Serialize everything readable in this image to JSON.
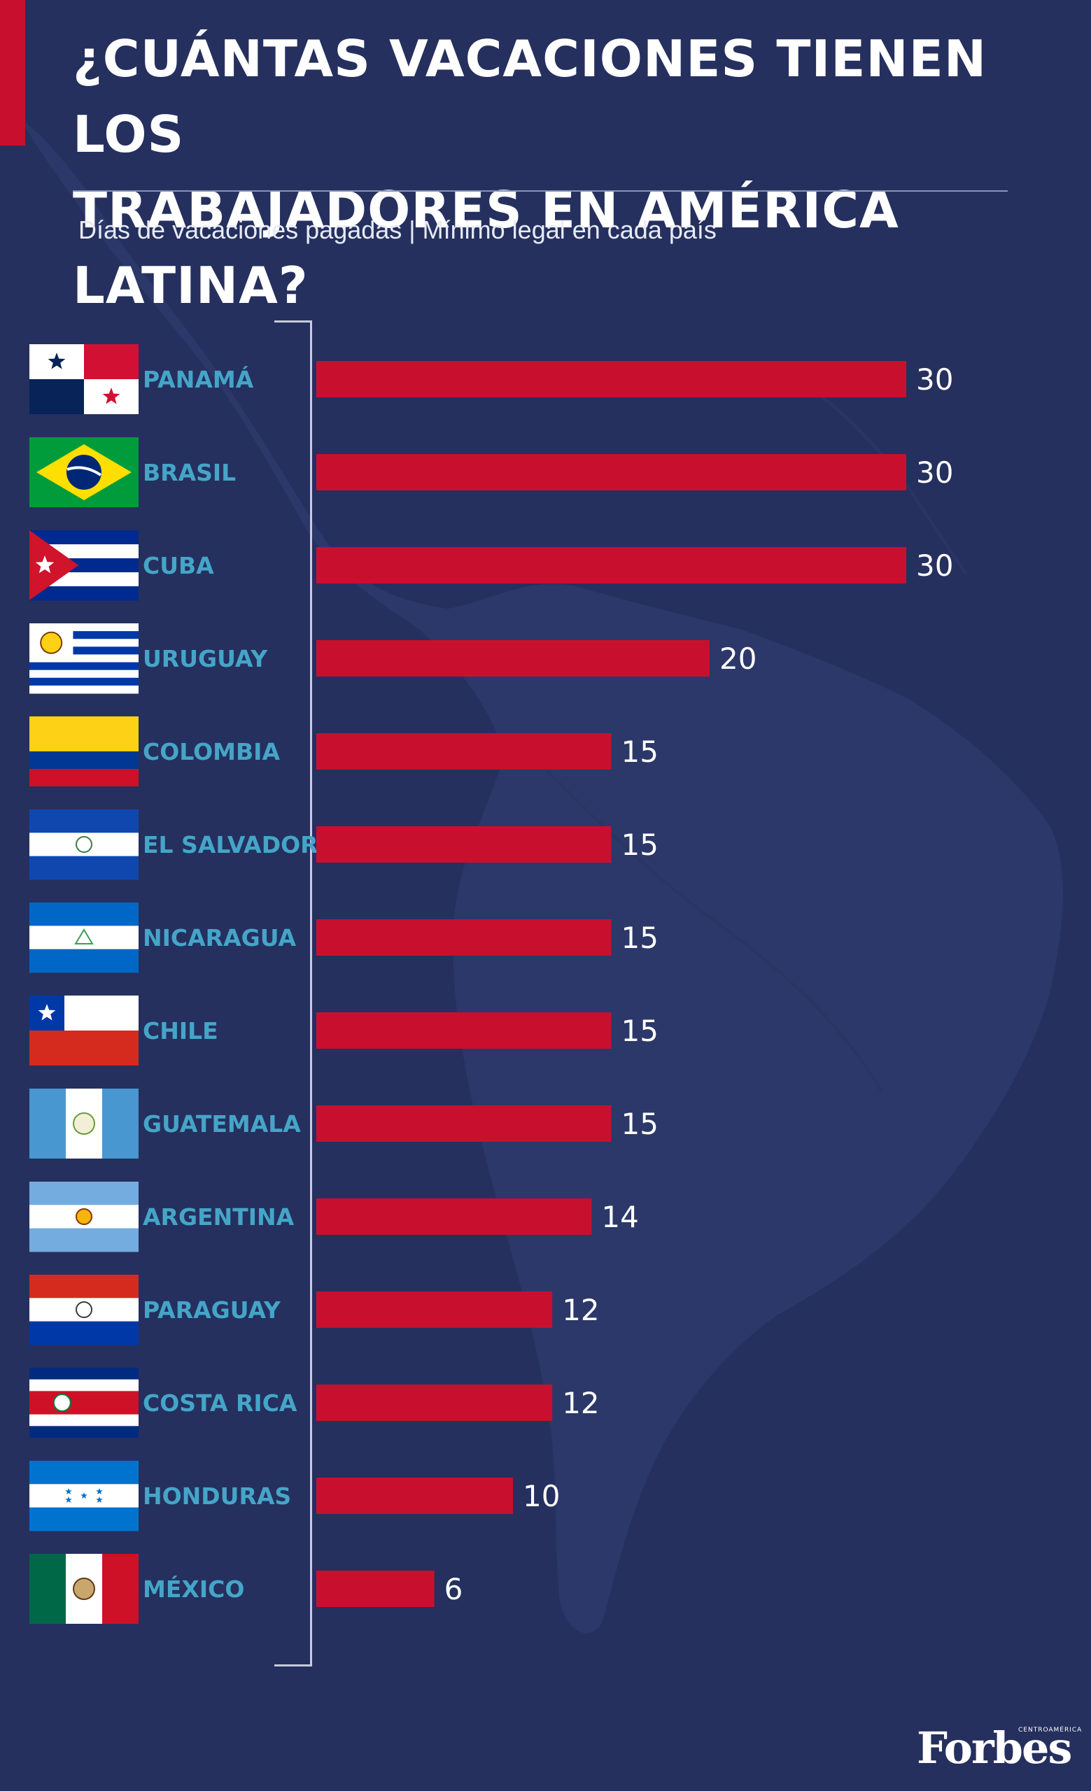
{
  "title_line1": "¿CUÁNTAS VACACIONES TIENEN LOS",
  "title_line2": "TRABAJADORES EN AMÉRICA LATINA?",
  "subtitle": "Días de vacaciones pagadas | Mínimo legal en cada país",
  "colors": {
    "background": "#25305e",
    "accent": "#c8102e",
    "bar": "#c8102e",
    "label": "#45a5c8",
    "text": "#ffffff"
  },
  "logo": {
    "name": "Forbes",
    "sub": "CENTROAMÉRICA"
  },
  "chart_data": {
    "type": "bar",
    "orientation": "horizontal",
    "categories": [
      "PANAMÁ",
      "BRASIL",
      "CUBA",
      "URUGUAY",
      "COLOMBIA",
      "EL SALVADOR",
      "NICARAGUA",
      "CHILE",
      "GUATEMALA",
      "ARGENTINA",
      "PARAGUAY",
      "COSTA RICA",
      "HONDURAS",
      "MÉXICO"
    ],
    "values": [
      30,
      30,
      30,
      20,
      15,
      15,
      15,
      15,
      15,
      14,
      12,
      12,
      10,
      6
    ],
    "flags": [
      "panama-flag",
      "brazil-flag",
      "cuba-flag",
      "uruguay-flag",
      "colombia-flag",
      "el-salvador-flag",
      "nicaragua-flag",
      "chile-flag",
      "guatemala-flag",
      "argentina-flag",
      "paraguay-flag",
      "costa-rica-flag",
      "honduras-flag",
      "mexico-flag"
    ],
    "xlim": [
      0,
      30
    ],
    "grid": false,
    "legend": "none"
  }
}
